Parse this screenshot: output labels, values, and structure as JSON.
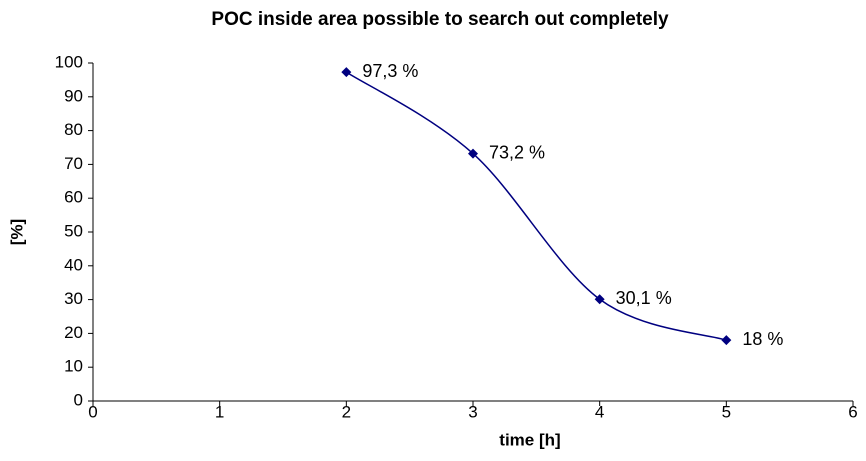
{
  "chart_data": {
    "type": "line",
    "title": "POC inside area possible to search out completely",
    "x_label": "time [h]",
    "y_label": "[%]",
    "x": [
      2,
      3,
      4,
      5
    ],
    "values": [
      97.3,
      73.2,
      30.1,
      18
    ],
    "value_labels": [
      "97,3 %",
      "73,2 %",
      "30,1 %",
      "18 %"
    ],
    "color": "#000080",
    "xlim": [
      0,
      6
    ],
    "xticks": [
      0,
      1,
      2,
      3,
      4,
      5,
      6
    ],
    "ylim": [
      0,
      100
    ],
    "yticks": [
      0,
      10,
      20,
      30,
      40,
      50,
      60,
      70,
      80,
      90,
      100
    ],
    "grid": false,
    "smooth": true
  }
}
